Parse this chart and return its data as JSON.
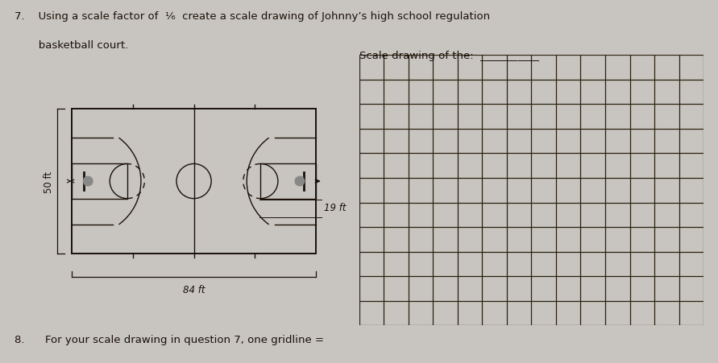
{
  "bg_color": "#c8c5c0",
  "line_color": "#1a1008",
  "grid_color": "#2a2010",
  "title_line1": "7.    Using a scale factor of  1/6  create a scale drawing of Johnny’s high school regulation",
  "title_line2": "        basketball court.",
  "scale_label": "Scale drawing of the:  ___________",
  "dim_50": "50 ft",
  "dim_84": "84 ft",
  "dim_19": "19 ft",
  "question8": "8.      For your scale drawing in question 7, one gridline =",
  "grid_cols": 14,
  "grid_rows": 11,
  "font_size_title": 9.5,
  "font_size_labels": 8.5
}
